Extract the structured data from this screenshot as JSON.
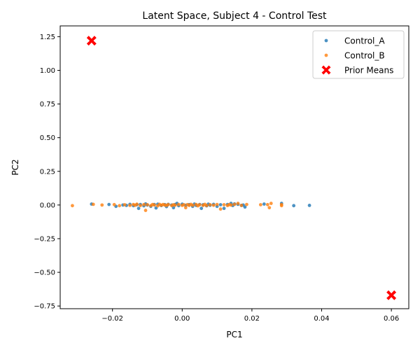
{
  "chart_data": {
    "type": "scatter",
    "title": "Latent Space, Subject 4 - Control Test",
    "xlabel": "PC1",
    "ylabel": "PC2",
    "xlim": [
      -0.035,
      0.065
    ],
    "ylim": [
      -0.77,
      1.33
    ],
    "x_ticks": [
      -0.02,
      0.0,
      0.02,
      0.04,
      0.06
    ],
    "x_tick_labels": [
      "−0.02",
      "0.00",
      "0.02",
      "0.04",
      "0.06"
    ],
    "y_ticks": [
      -0.75,
      -0.5,
      -0.25,
      0.0,
      0.25,
      0.5,
      0.75,
      1.0,
      1.25
    ],
    "y_tick_labels": [
      "−0.75",
      "−0.50",
      "−0.25",
      "0.00",
      "0.25",
      "0.50",
      "0.75",
      "1.00",
      "1.25"
    ],
    "grid": false,
    "legend_position": "top-right",
    "series": [
      {
        "name": "Control_A",
        "color": "#1f77b4",
        "marker": "circle",
        "points": [
          [
            -0.026,
            0.007
          ],
          [
            -0.021,
            0.004
          ],
          [
            -0.019,
            -0.01
          ],
          [
            -0.017,
            0.0
          ],
          [
            -0.016,
            -0.003
          ],
          [
            -0.015,
            0.005
          ],
          [
            -0.014,
            -0.005
          ],
          [
            -0.013,
            0.002
          ],
          [
            -0.0125,
            -0.025
          ],
          [
            -0.012,
            0.004
          ],
          [
            -0.011,
            -0.006
          ],
          [
            -0.0105,
            0.008
          ],
          [
            -0.01,
            0.0
          ],
          [
            -0.009,
            -0.01
          ],
          [
            -0.008,
            0.004
          ],
          [
            -0.0075,
            -0.022
          ],
          [
            -0.007,
            0.006
          ],
          [
            -0.006,
            -0.004
          ],
          [
            -0.005,
            0.003
          ],
          [
            -0.0045,
            -0.012
          ],
          [
            -0.004,
            0.005
          ],
          [
            -0.003,
            0.0
          ],
          [
            -0.0025,
            -0.02
          ],
          [
            -0.002,
            0.004
          ],
          [
            -0.0015,
            0.012
          ],
          [
            -0.001,
            -0.005
          ],
          [
            0.0,
            0.006
          ],
          [
            0.001,
            -0.002
          ],
          [
            0.002,
            0.003
          ],
          [
            0.003,
            -0.01
          ],
          [
            0.0035,
            0.007
          ],
          [
            0.004,
            -0.003
          ],
          [
            0.005,
            0.004
          ],
          [
            0.0055,
            -0.025
          ],
          [
            0.006,
            0.002
          ],
          [
            0.007,
            -0.006
          ],
          [
            0.0075,
            0.006
          ],
          [
            0.008,
            -0.002
          ],
          [
            0.009,
            0.005
          ],
          [
            0.01,
            -0.01
          ],
          [
            0.011,
            0.002
          ],
          [
            0.012,
            -0.025
          ],
          [
            0.013,
            0.004
          ],
          [
            0.014,
            0.012
          ],
          [
            0.0145,
            -0.004
          ],
          [
            0.015,
            0.008
          ],
          [
            0.016,
            0.005
          ],
          [
            0.017,
            -0.003
          ],
          [
            0.0175,
            0.0
          ],
          [
            0.018,
            -0.015
          ],
          [
            0.0235,
            0.007
          ],
          [
            0.0285,
            0.012
          ],
          [
            0.032,
            -0.005
          ],
          [
            0.0365,
            -0.003
          ]
        ]
      },
      {
        "name": "Control_B",
        "color": "#ff7f0e",
        "marker": "circle",
        "points": [
          [
            -0.0315,
            -0.005
          ],
          [
            -0.0255,
            0.005
          ],
          [
            -0.023,
            0.0
          ],
          [
            -0.0195,
            0.003
          ],
          [
            -0.018,
            -0.005
          ],
          [
            -0.0165,
            0.002
          ],
          [
            -0.015,
            -0.003
          ],
          [
            -0.014,
            0.004
          ],
          [
            -0.0135,
            -0.002
          ],
          [
            -0.013,
            0.006
          ],
          [
            -0.012,
            -0.004
          ],
          [
            -0.011,
            0.003
          ],
          [
            -0.0105,
            -0.04
          ],
          [
            -0.01,
            0.002
          ],
          [
            -0.009,
            -0.005
          ],
          [
            -0.0085,
            0.004
          ],
          [
            -0.008,
            0.0
          ],
          [
            -0.007,
            -0.006
          ],
          [
            -0.0065,
            0.005
          ],
          [
            -0.006,
            -0.002
          ],
          [
            -0.0055,
            0.004
          ],
          [
            -0.005,
            0.0
          ],
          [
            -0.0045,
            -0.003
          ],
          [
            -0.004,
            0.003
          ],
          [
            -0.003,
            -0.004
          ],
          [
            -0.0025,
            0.002
          ],
          [
            -0.002,
            -0.001
          ],
          [
            -0.001,
            0.004
          ],
          [
            0.0,
            -0.003
          ],
          [
            0.0005,
            0.002
          ],
          [
            0.001,
            -0.02
          ],
          [
            0.0015,
            0.003
          ],
          [
            0.002,
            -0.003
          ],
          [
            0.0025,
            0.005
          ],
          [
            0.003,
            -0.002
          ],
          [
            0.004,
            0.004
          ],
          [
            0.0045,
            -0.006
          ],
          [
            0.005,
            0.002
          ],
          [
            0.006,
            -0.003
          ],
          [
            0.0065,
            0.005
          ],
          [
            0.007,
            -0.004
          ],
          [
            0.008,
            0.002
          ],
          [
            0.009,
            -0.002
          ],
          [
            0.01,
            0.004
          ],
          [
            0.011,
            -0.03
          ],
          [
            0.012,
            0.002
          ],
          [
            0.013,
            -0.004
          ],
          [
            0.0135,
            0.003
          ],
          [
            0.014,
            0.0
          ],
          [
            0.015,
            0.005
          ],
          [
            0.016,
            0.012
          ],
          [
            0.017,
            -0.003
          ],
          [
            0.0185,
            0.004
          ],
          [
            0.0225,
            0.002
          ],
          [
            0.0245,
            0.003
          ],
          [
            0.025,
            -0.02
          ],
          [
            0.0255,
            0.012
          ],
          [
            0.0285,
            -0.005
          ],
          [
            0.0285,
            0.003
          ]
        ]
      },
      {
        "name": "Prior Means",
        "color": "#ff0000",
        "marker": "X",
        "points": [
          [
            -0.026,
            1.22
          ],
          [
            0.06,
            -0.67
          ]
        ]
      }
    ]
  }
}
